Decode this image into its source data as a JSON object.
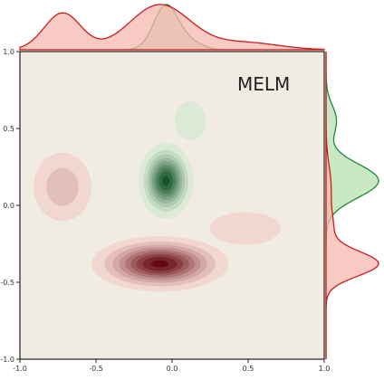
{
  "chart_data": {
    "type": "kde-joint",
    "title": "MELM",
    "xlim": [
      -1.0,
      1.0
    ],
    "ylim": [
      -1.0,
      1.0
    ],
    "xticks": [
      "-1.0",
      "-0.5",
      "0.0",
      "0.5",
      "1.0"
    ],
    "yticks": [
      "1.0",
      "0.5",
      "0.0",
      "-0.5",
      "-1.0"
    ],
    "grid": false,
    "background": "#f0ebe3",
    "series": [
      {
        "color_key": "green",
        "components": [
          {
            "x": -0.04,
            "y": 0.16,
            "weight": 1.0,
            "sx": 0.08,
            "sy": 0.11
          },
          {
            "x": 0.12,
            "y": 0.55,
            "weight": 0.18,
            "sx": 0.08,
            "sy": 0.1
          }
        ],
        "marginal_x_peak": 0.0,
        "marginal_y_peak": 0.2
      },
      {
        "color_key": "red",
        "components": [
          {
            "x": -0.08,
            "y": -0.38,
            "weight": 1.0,
            "sx": 0.2,
            "sy": 0.08
          },
          {
            "x": -0.72,
            "y": 0.12,
            "weight": 0.28,
            "sx": 0.12,
            "sy": 0.14
          },
          {
            "x": 0.48,
            "y": -0.15,
            "weight": 0.14,
            "sx": 0.22,
            "sy": 0.1
          }
        ],
        "marginal_x_peak": -0.1,
        "marginal_y_peak": -0.35
      }
    ]
  },
  "colors": {
    "green": "#1f8a3a",
    "green_fill": "#b8e0b0",
    "red": "#cc1b1b",
    "red_fill": "#f7b7b0",
    "overlap": "#b8b8b8",
    "axis": "#222222"
  }
}
